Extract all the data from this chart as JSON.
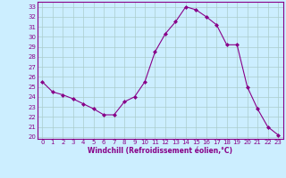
{
  "x": [
    0,
    1,
    2,
    3,
    4,
    5,
    6,
    7,
    8,
    9,
    10,
    11,
    12,
    13,
    14,
    15,
    16,
    17,
    18,
    19,
    20,
    21,
    22,
    23
  ],
  "y": [
    25.5,
    24.5,
    24.2,
    23.8,
    23.3,
    22.8,
    22.2,
    22.2,
    23.5,
    24.0,
    25.5,
    28.5,
    30.3,
    31.5,
    33.0,
    32.7,
    32.0,
    31.2,
    29.2,
    29.2,
    25.0,
    22.8,
    21.0,
    20.2
  ],
  "line_color": "#880088",
  "marker": "D",
  "marker_size": 2,
  "bg_color": "#cceeff",
  "grid_color": "#aacccc",
  "xlabel": "Windchill (Refroidissement éolien,°C)",
  "xlim": [
    -0.5,
    23.5
  ],
  "ylim": [
    19.8,
    33.5
  ],
  "yticks": [
    20,
    21,
    22,
    23,
    24,
    25,
    26,
    27,
    28,
    29,
    30,
    31,
    32,
    33
  ],
  "xticks": [
    0,
    1,
    2,
    3,
    4,
    5,
    6,
    7,
    8,
    9,
    10,
    11,
    12,
    13,
    14,
    15,
    16,
    17,
    18,
    19,
    20,
    21,
    22,
    23
  ],
  "label_color": "#880088",
  "spine_color": "#880088",
  "bottom_bg": "#880088"
}
